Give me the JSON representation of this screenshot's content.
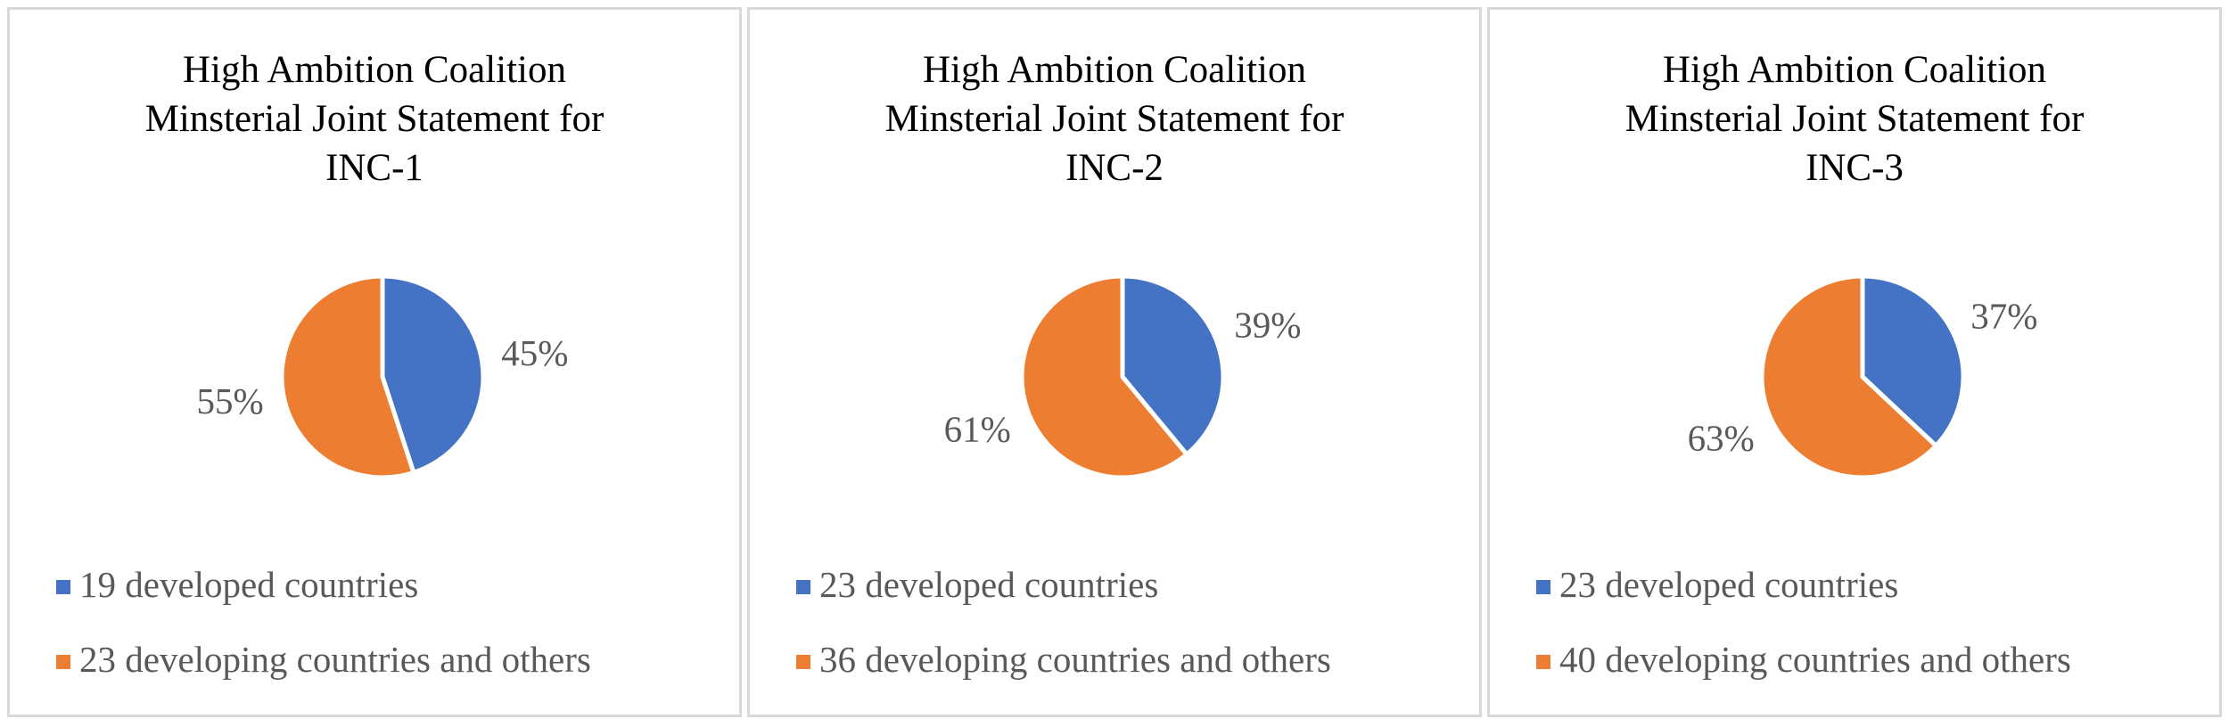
{
  "colors": {
    "developed": "#4472c4",
    "developing": "#ed7d31"
  },
  "chart_data": [
    {
      "type": "pie",
      "title": [
        "High Ambition Coalition",
        "Minsterial Joint Statement for",
        "INC-1"
      ],
      "slices": [
        {
          "label": "19 developed countries",
          "value": 45,
          "pct_label": "45%",
          "color": "#4472c4"
        },
        {
          "label": "23 developing countries and others",
          "value": 55,
          "pct_label": "55%",
          "color": "#ed7d31"
        }
      ],
      "legend_position": "bottom"
    },
    {
      "type": "pie",
      "title": [
        "High Ambition Coalition",
        "Minsterial Joint Statement for",
        "INC-2"
      ],
      "slices": [
        {
          "label": "23 developed countries",
          "value": 39,
          "pct_label": "39%",
          "color": "#4472c4"
        },
        {
          "label": "36 developing countries and others",
          "value": 61,
          "pct_label": "61%",
          "color": "#ed7d31"
        }
      ],
      "legend_position": "bottom"
    },
    {
      "type": "pie",
      "title": [
        "High Ambition Coalition",
        "Minsterial Joint Statement for",
        "INC-3"
      ],
      "slices": [
        {
          "label": "23 developed countries",
          "value": 37,
          "pct_label": "37%",
          "color": "#4472c4"
        },
        {
          "label": "40 developing countries and others",
          "value": 63,
          "pct_label": "63%",
          "color": "#ed7d31"
        }
      ],
      "legend_position": "bottom"
    }
  ]
}
